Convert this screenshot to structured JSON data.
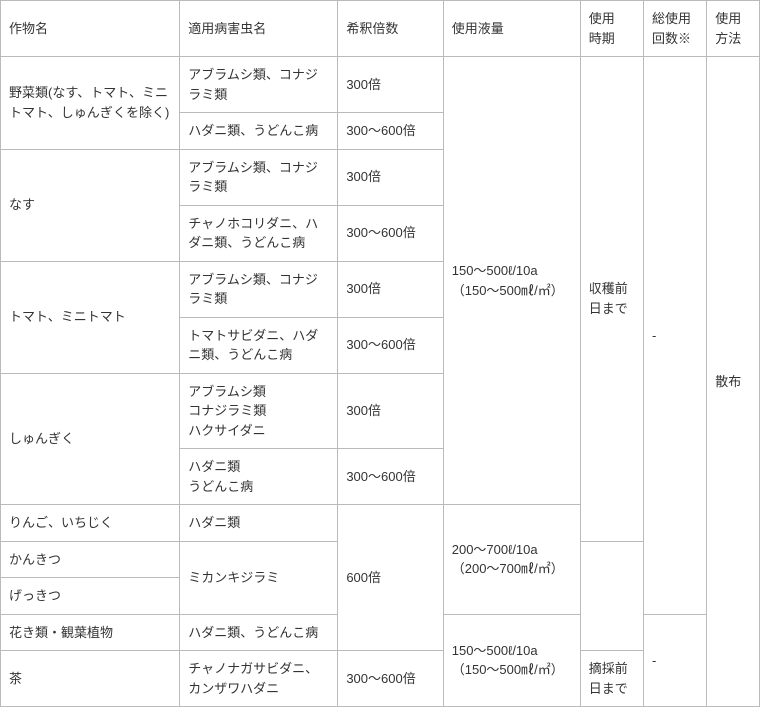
{
  "headers": {
    "crop": "作物名",
    "pest": "適用病害虫名",
    "dilution": "希釈倍数",
    "volume": "使用液量",
    "timing": "使用\n時期",
    "count": "総使用\n回数※",
    "method": "使用\n方法"
  },
  "crops": {
    "veg": "野菜類(なす、トマト、ミニトマト、しゅんぎくを除く)",
    "nasu": "なす",
    "tomato": "トマト、ミニトマト",
    "shungiku": "しゅんぎく",
    "ringo": "りんご、いちじく",
    "kankitsu": "かんきつ",
    "gekkitsu": "げっきつ",
    "hana": "花き類・観葉植物",
    "cha": "茶"
  },
  "pests": {
    "aburamushi_konajirami": "アブラムシ類、コナジラミ類",
    "hadani_udonko": "ハダニ類、うどんこ病",
    "chanohokoridani": "チャノホコリダニ、ハダニ類、うどんこ病",
    "tomatosabidani": "トマトサビダニ、ハダニ類、うどんこ病",
    "shungiku_a": "アブラムシ類\nコナジラミ類\nハクサイダニ",
    "shungiku_b": "ハダニ類\nうどんこ病",
    "hadani": "ハダニ類",
    "mikan": "ミカンキジラミ",
    "hana_pest": "ハダニ類、うどんこ病",
    "cha_pest": "チャノナガサビダニ、カンザワハダニ"
  },
  "dilutions": {
    "d300": "300倍",
    "d300_600": "300〜600倍",
    "d600": "600倍"
  },
  "volumes": {
    "v150_500": "150〜500ℓ/10a（150〜500㎖/㎡）",
    "v200_700": "200〜700ℓ/10a（200〜700㎖/㎡）",
    "v150_500b": "150〜500ℓ/10a（150〜500㎖/㎡）"
  },
  "timings": {
    "shukaku": "収穫前日まで",
    "tekisai": "摘採前日まで"
  },
  "counts": {
    "dash1": "-",
    "dash2": "-"
  },
  "methods": {
    "sanpu": "散布"
  },
  "style": {
    "border_color": "#bbbbbb",
    "background": "#ffffff",
    "text_color": "#333333",
    "font_size": 13
  }
}
